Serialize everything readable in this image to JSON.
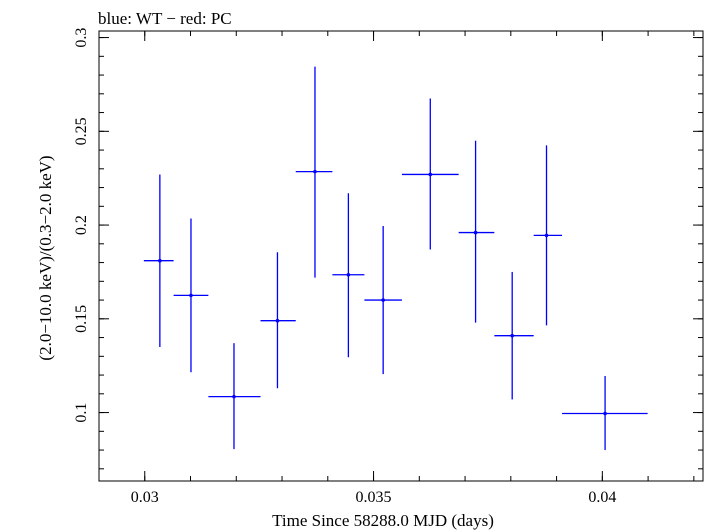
{
  "chart_data": {
    "type": "scatter",
    "title": "blue: WT − red: PC",
    "xlabel": "Time Since 58288.0 MJD (days)",
    "ylabel": "(2.0−10.0 keV)/(0.3−2.0 keV)",
    "xlim": [
      0.029,
      0.0422
    ],
    "ylim": [
      0.0635,
      0.3035
    ],
    "x_ticks": [
      {
        "value": 0.03,
        "label": "0.03"
      },
      {
        "value": 0.035,
        "label": "0.035"
      },
      {
        "value": 0.04,
        "label": "0.04"
      }
    ],
    "y_ticks": [
      {
        "value": 0.1,
        "label": "0.1"
      },
      {
        "value": 0.15,
        "label": "0.15"
      },
      {
        "value": 0.2,
        "label": "0.2"
      },
      {
        "value": 0.25,
        "label": "0.25"
      },
      {
        "value": 0.3,
        "label": "0.3"
      }
    ],
    "x_minor_step": 0.001,
    "y_minor_step": 0.01,
    "grid": false,
    "series": [
      {
        "color": "#0000ff",
        "points": [
          {
            "x": 0.03033,
            "y": 0.181,
            "xlo": 0.02998,
            "xhi": 0.03063,
            "ylo": 0.135,
            "yhi": 0.227
          },
          {
            "x": 0.03101,
            "y": 0.1625,
            "xlo": 0.03063,
            "xhi": 0.03139,
            "ylo": 0.1215,
            "yhi": 0.2035
          },
          {
            "x": 0.03195,
            "y": 0.1085,
            "xlo": 0.03139,
            "xhi": 0.03253,
            "ylo": 0.0805,
            "yhi": 0.137
          },
          {
            "x": 0.0329,
            "y": 0.149,
            "xlo": 0.03253,
            "xhi": 0.0333,
            "ylo": 0.113,
            "yhi": 0.1855
          },
          {
            "x": 0.03372,
            "y": 0.2285,
            "xlo": 0.0333,
            "xhi": 0.0341,
            "ylo": 0.172,
            "yhi": 0.2845
          },
          {
            "x": 0.03445,
            "y": 0.1735,
            "xlo": 0.0341,
            "xhi": 0.0348,
            "ylo": 0.1295,
            "yhi": 0.217
          },
          {
            "x": 0.03521,
            "y": 0.16,
            "xlo": 0.0348,
            "xhi": 0.03562,
            "ylo": 0.1205,
            "yhi": 0.1995
          },
          {
            "x": 0.03624,
            "y": 0.227,
            "xlo": 0.03562,
            "xhi": 0.03686,
            "ylo": 0.187,
            "yhi": 0.2675
          },
          {
            "x": 0.03723,
            "y": 0.196,
            "xlo": 0.03686,
            "xhi": 0.03764,
            "ylo": 0.148,
            "yhi": 0.245
          },
          {
            "x": 0.03803,
            "y": 0.141,
            "xlo": 0.03764,
            "xhi": 0.0385,
            "ylo": 0.107,
            "yhi": 0.175
          },
          {
            "x": 0.03878,
            "y": 0.1945,
            "xlo": 0.0385,
            "xhi": 0.03912,
            "ylo": 0.1465,
            "yhi": 0.2425
          },
          {
            "x": 0.04006,
            "y": 0.0995,
            "xlo": 0.03912,
            "xhi": 0.04099,
            "ylo": 0.08,
            "yhi": 0.1195
          }
        ]
      }
    ]
  }
}
